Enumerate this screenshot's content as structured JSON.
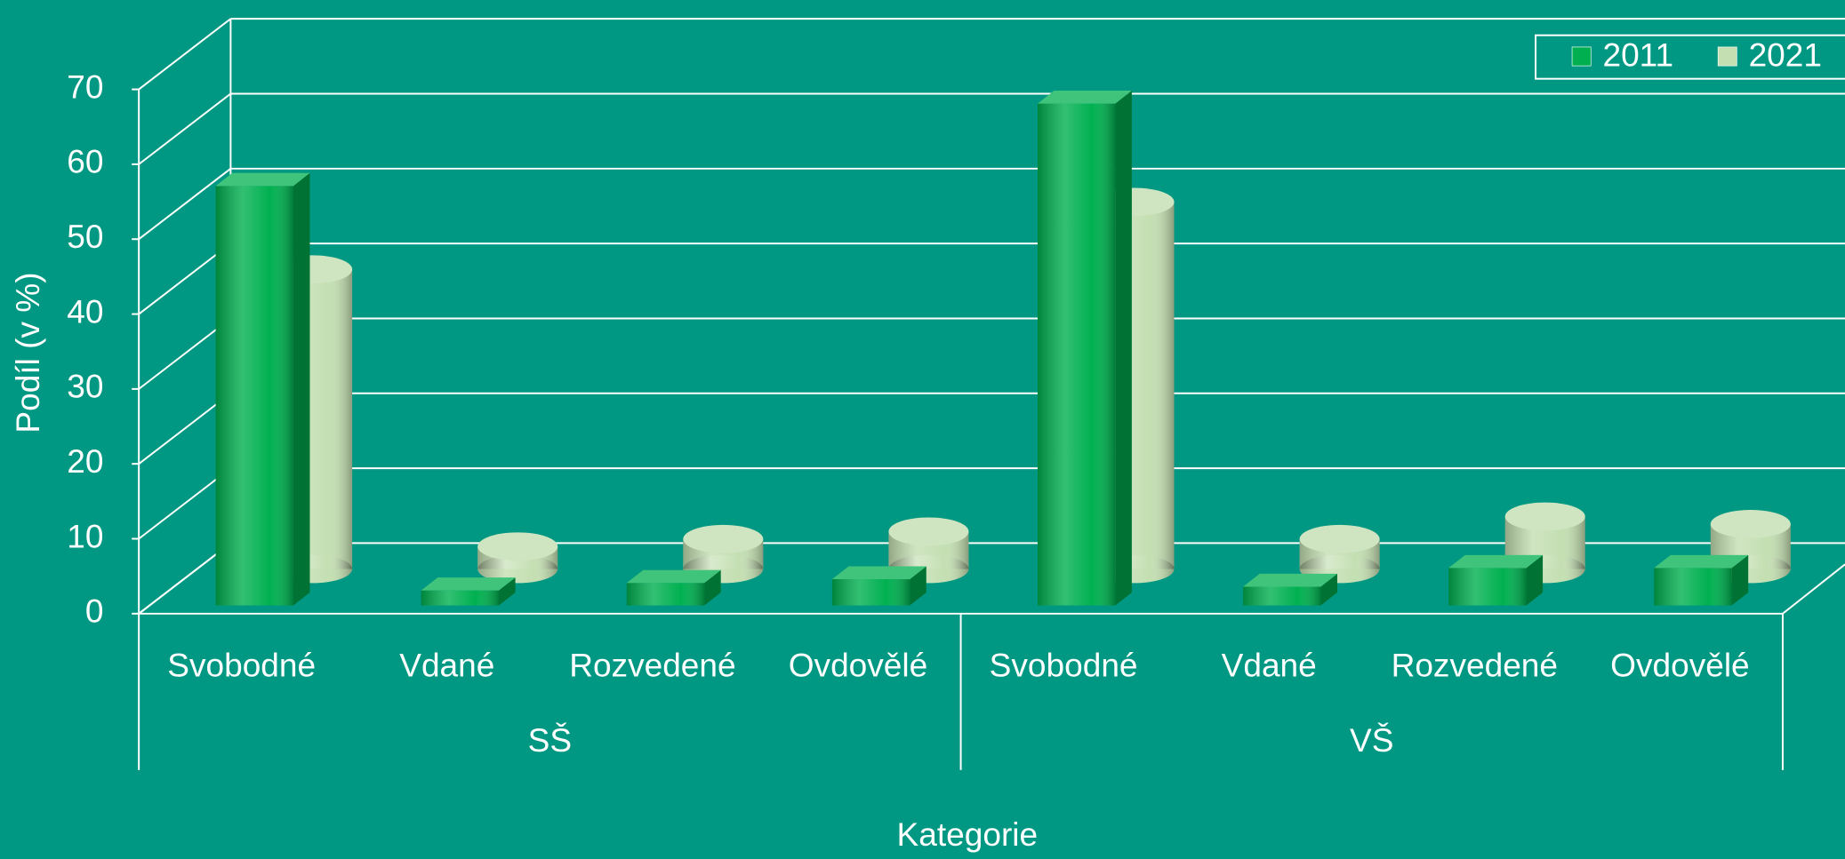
{
  "chart_data": {
    "type": "bar3d",
    "categories": [
      "Svobodné",
      "Vdané",
      "Rozvedené",
      "Ovdovělé",
      "Svobodné",
      "Vdané",
      "Rozvedené",
      "Ovdovělé"
    ],
    "groups": [
      "SŠ",
      "VŠ"
    ],
    "series": [
      {
        "name": "2011",
        "color": "#00b050",
        "values": [
          56,
          2,
          3,
          3.5,
          67,
          2.5,
          5,
          5
        ]
      },
      {
        "name": "2021",
        "color": "#c4dfb2",
        "values": [
          40,
          3,
          4,
          5,
          49,
          4,
          7,
          6
        ]
      }
    ],
    "xlabel": "Kategorie",
    "ylabel": "Podíl (v %)",
    "ylim": [
      0,
      70
    ],
    "yticks": [
      0,
      10,
      20,
      30,
      40,
      50,
      60,
      70
    ],
    "grid": true,
    "legend": "top-right"
  }
}
